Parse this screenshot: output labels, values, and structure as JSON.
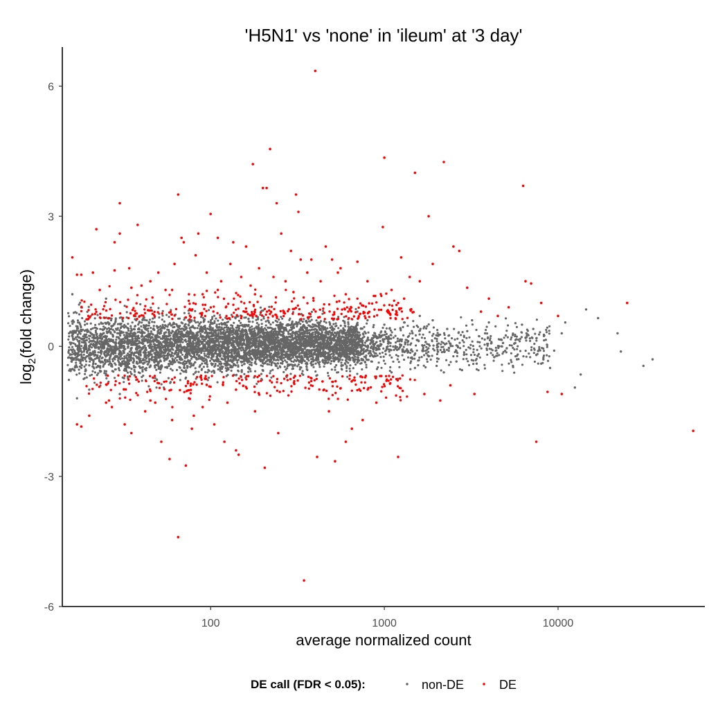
{
  "chart_data": {
    "type": "scatter",
    "title": "'H5N1' vs 'none' in 'ileum' at '3 day'",
    "xlabel": "average normalized count",
    "ylabel_base": "log",
    "ylabel_sub": "2",
    "ylabel_rest": "(fold change)",
    "x_scale": "log10",
    "xlim": [
      14,
      70000
    ],
    "ylim": [
      -6.0,
      6.9
    ],
    "x_ticks": [
      100,
      1000,
      10000
    ],
    "x_tick_labels": [
      "100",
      "1000",
      "10000"
    ],
    "y_ticks": [
      6,
      3,
      0,
      -3,
      -6
    ],
    "y_tick_labels": [
      "6",
      "3",
      "0",
      "-3",
      "-6"
    ],
    "grid": false,
    "legend": {
      "position": "bottom",
      "title": "DE call (FDR < 0.05):",
      "entries": [
        "non-DE",
        "DE"
      ]
    },
    "colors": {
      "non_de": "#666666",
      "de": "#ff0000"
    },
    "non_de_core": {
      "description_points": "dense cloud of approx. 6000 genes between 15 and 700 counts, centered near 0, spread roughly -0.9 to +1.0, thinning toward higher counts",
      "x_range": [
        15,
        700
      ],
      "y_spread": 0.85
    },
    "series": [
      {
        "name": "non-DE",
        "points": [
          [
            16,
            1.2
          ],
          [
            17,
            -1.2
          ],
          [
            18,
            0.9
          ],
          [
            20,
            -1.0
          ],
          [
            25,
            1.1
          ],
          [
            30,
            -1.1
          ],
          [
            800,
            0.6
          ],
          [
            900,
            -0.7
          ],
          [
            1000,
            0.5
          ],
          [
            1100,
            -0.6
          ],
          [
            1300,
            0.55
          ],
          [
            1500,
            -0.5
          ],
          [
            1700,
            0.45
          ],
          [
            2000,
            -0.45
          ],
          [
            2300,
            0.4
          ],
          [
            2600,
            -0.35
          ],
          [
            3000,
            0.35
          ],
          [
            3400,
            -0.4
          ],
          [
            3800,
            0.3
          ],
          [
            4300,
            -0.25
          ],
          [
            5000,
            0.25
          ],
          [
            5800,
            -0.3
          ],
          [
            6500,
            0.2
          ],
          [
            7500,
            -0.2
          ],
          [
            8500,
            0.15
          ],
          [
            9500,
            -0.1
          ],
          [
            11000,
            0.55
          ],
          [
            12500,
            -0.95
          ],
          [
            13500,
            -0.65
          ],
          [
            14500,
            0.85
          ],
          [
            17000,
            0.65
          ],
          [
            22000,
            0.3
          ],
          [
            23000,
            -0.12
          ],
          [
            31000,
            -0.45
          ],
          [
            35000,
            -0.3
          ],
          [
            9000,
            -0.5
          ],
          [
            10500,
            0.3
          ],
          [
            4000,
            0.55
          ],
          [
            2800,
            -0.55
          ],
          [
            1900,
            0.6
          ],
          [
            1200,
            -0.75
          ],
          [
            700,
            0.8
          ],
          [
            650,
            -0.8
          ],
          [
            5500,
            -0.45
          ],
          [
            6200,
            0.5
          ],
          [
            7200,
            0.4
          ],
          [
            8000,
            -0.4
          ],
          [
            3200,
            0.6
          ],
          [
            2200,
            -0.6
          ],
          [
            1600,
            0.7
          ]
        ]
      },
      {
        "name": "DE",
        "points": [
          [
            16,
            2.05
          ],
          [
            17,
            1.65
          ],
          [
            18,
            1.65
          ],
          [
            17,
            -1.8
          ],
          [
            18,
            -1.85
          ],
          [
            20,
            -1.6
          ],
          [
            21,
            1.7
          ],
          [
            22,
            2.7
          ],
          [
            23,
            1.3
          ],
          [
            25,
            -1.3
          ],
          [
            27,
            -1.4
          ],
          [
            28,
            1.75
          ],
          [
            28,
            2.4
          ],
          [
            30,
            3.3
          ],
          [
            30,
            2.6
          ],
          [
            32,
            -1.8
          ],
          [
            34,
            1.8
          ],
          [
            35,
            -2.0
          ],
          [
            38,
            2.8
          ],
          [
            40,
            1.4
          ],
          [
            42,
            -1.5
          ],
          [
            45,
            1.5
          ],
          [
            48,
            -1.3
          ],
          [
            50,
            1.7
          ],
          [
            52,
            -2.2
          ],
          [
            55,
            1.3
          ],
          [
            58,
            -2.6
          ],
          [
            60,
            -1.7
          ],
          [
            62,
            1.9
          ],
          [
            65,
            3.5
          ],
          [
            65,
            -4.4
          ],
          [
            68,
            2.5
          ],
          [
            70,
            2.4
          ],
          [
            72,
            -2.75
          ],
          [
            75,
            1.2
          ],
          [
            78,
            -1.9
          ],
          [
            80,
            -1.6
          ],
          [
            82,
            2.1
          ],
          [
            85,
            2.6
          ],
          [
            90,
            -1.4
          ],
          [
            95,
            1.7
          ],
          [
            100,
            3.05
          ],
          [
            105,
            -1.8
          ],
          [
            110,
            2.5
          ],
          [
            115,
            1.5
          ],
          [
            120,
            -2.2
          ],
          [
            125,
            -1.3
          ],
          [
            130,
            1.9
          ],
          [
            135,
            2.4
          ],
          [
            140,
            -2.4
          ],
          [
            145,
            -2.5
          ],
          [
            150,
            1.6
          ],
          [
            160,
            2.3
          ],
          [
            170,
            1.4
          ],
          [
            175,
            4.2
          ],
          [
            180,
            -1.5
          ],
          [
            190,
            1.8
          ],
          [
            200,
            3.65
          ],
          [
            205,
            -2.8
          ],
          [
            210,
            3.65
          ],
          [
            220,
            4.55
          ],
          [
            230,
            1.6
          ],
          [
            240,
            3.3
          ],
          [
            245,
            -2.0
          ],
          [
            255,
            2.6
          ],
          [
            270,
            1.5
          ],
          [
            290,
            2.2
          ],
          [
            310,
            3.5
          ],
          [
            320,
            3.1
          ],
          [
            330,
            2.0
          ],
          [
            345,
            -5.4
          ],
          [
            360,
            1.7
          ],
          [
            380,
            2.0
          ],
          [
            400,
            6.35
          ],
          [
            410,
            -2.55
          ],
          [
            430,
            1.5
          ],
          [
            460,
            2.3
          ],
          [
            480,
            -1.5
          ],
          [
            500,
            2.0
          ],
          [
            520,
            -2.65
          ],
          [
            540,
            1.7
          ],
          [
            560,
            1.8
          ],
          [
            600,
            -2.2
          ],
          [
            650,
            -1.9
          ],
          [
            700,
            1.95
          ],
          [
            750,
            -1.7
          ],
          [
            800,
            1.5
          ],
          [
            900,
            -1.3
          ],
          [
            980,
            2.75
          ],
          [
            1000,
            4.35
          ],
          [
            1100,
            1.3
          ],
          [
            1200,
            -2.55
          ],
          [
            1250,
            2.05
          ],
          [
            1400,
            1.6
          ],
          [
            1500,
            4.0
          ],
          [
            1600,
            1.5
          ],
          [
            1800,
            3.0
          ],
          [
            1900,
            1.9
          ],
          [
            2100,
            -1.25
          ],
          [
            2200,
            4.25
          ],
          [
            2500,
            2.3
          ],
          [
            2700,
            2.2
          ],
          [
            3000,
            1.35
          ],
          [
            3300,
            -1.1
          ],
          [
            4000,
            1.1
          ],
          [
            4500,
            0.7
          ],
          [
            6300,
            3.7
          ],
          [
            6500,
            1.5
          ],
          [
            7000,
            1.45
          ],
          [
            7500,
            -2.2
          ],
          [
            8000,
            1.0
          ],
          [
            8700,
            -1.05
          ],
          [
            10500,
            -1.1
          ],
          [
            10000,
            0.7
          ],
          [
            25000,
            1.0
          ],
          [
            60000,
            -1.95
          ],
          [
            3600,
            0.8
          ],
          [
            2400,
            -0.9
          ],
          [
            5200,
            0.9
          ],
          [
            1700,
            -1.1
          ],
          [
            1300,
            1.1
          ],
          [
            600,
            1.2
          ],
          [
            450,
            -1.0
          ],
          [
            300,
            1.25
          ],
          [
            250,
            -1.05
          ],
          [
            180,
            1.2
          ],
          [
            140,
            -1.0
          ],
          [
            110,
            1.3
          ],
          [
            90,
            1.2
          ],
          [
            75,
            -1.2
          ],
          [
            60,
            1.3
          ],
          [
            45,
            -1.25
          ],
          [
            35,
            1.35
          ],
          [
            26,
            -1.25
          ]
        ]
      }
    ]
  }
}
